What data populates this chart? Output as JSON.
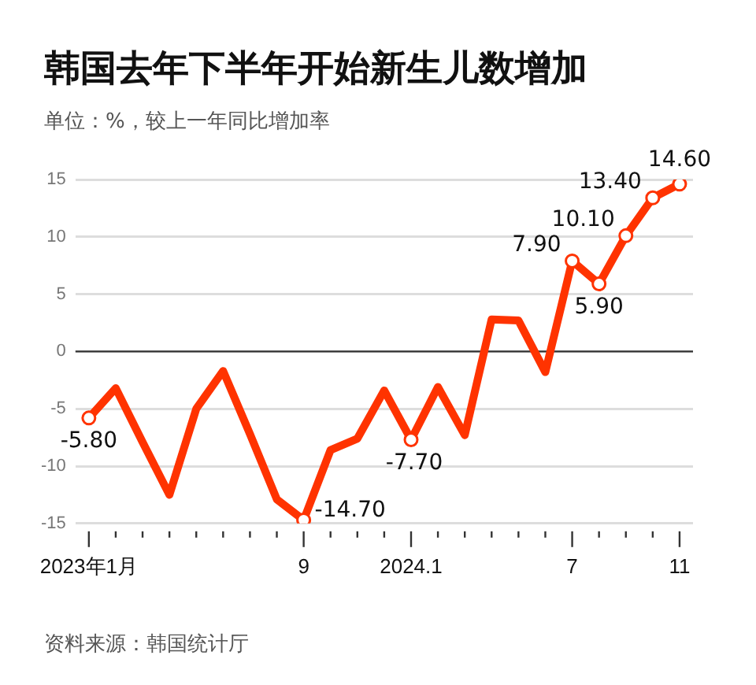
{
  "chart_data": {
    "type": "line",
    "title": "韩国去年下半年开始新生儿数增加",
    "subtitle": "单位：%，较上一年同比增加率",
    "categories": [
      "2023年1月",
      null,
      null,
      null,
      null,
      null,
      null,
      null,
      "9",
      null,
      null,
      null,
      "2024.1",
      null,
      null,
      null,
      null,
      null,
      "7",
      null,
      null,
      null,
      "11"
    ],
    "series": [
      {
        "color": "#ff3300",
        "values": [
          -5.8,
          -3.2,
          -7.9,
          -12.5,
          -5.0,
          -1.7,
          -7.2,
          -12.9,
          -14.7,
          -8.6,
          -7.6,
          -3.4,
          -7.7,
          -3.1,
          -7.3,
          2.8,
          2.7,
          -1.8,
          7.9,
          5.9,
          10.1,
          13.4,
          14.6
        ],
        "value_labels": [
          "-5.80",
          null,
          null,
          null,
          null,
          null,
          null,
          null,
          "-14.70",
          null,
          null,
          null,
          "-7.70",
          null,
          null,
          null,
          null,
          null,
          "7.90",
          "5.90",
          "10.10",
          "13.40",
          "14.60"
        ]
      }
    ],
    "ylim": [
      -15,
      15
    ],
    "yticks": [
      -15,
      -10,
      -5,
      0,
      5,
      10,
      15
    ],
    "grid": "y",
    "legend": false,
    "line_style": "solid",
    "ref_lines": [
      {
        "axis": "y",
        "value": 0,
        "color": "#333333"
      }
    ],
    "annotations": [
      "资料来源：韩国统计厅"
    ]
  }
}
